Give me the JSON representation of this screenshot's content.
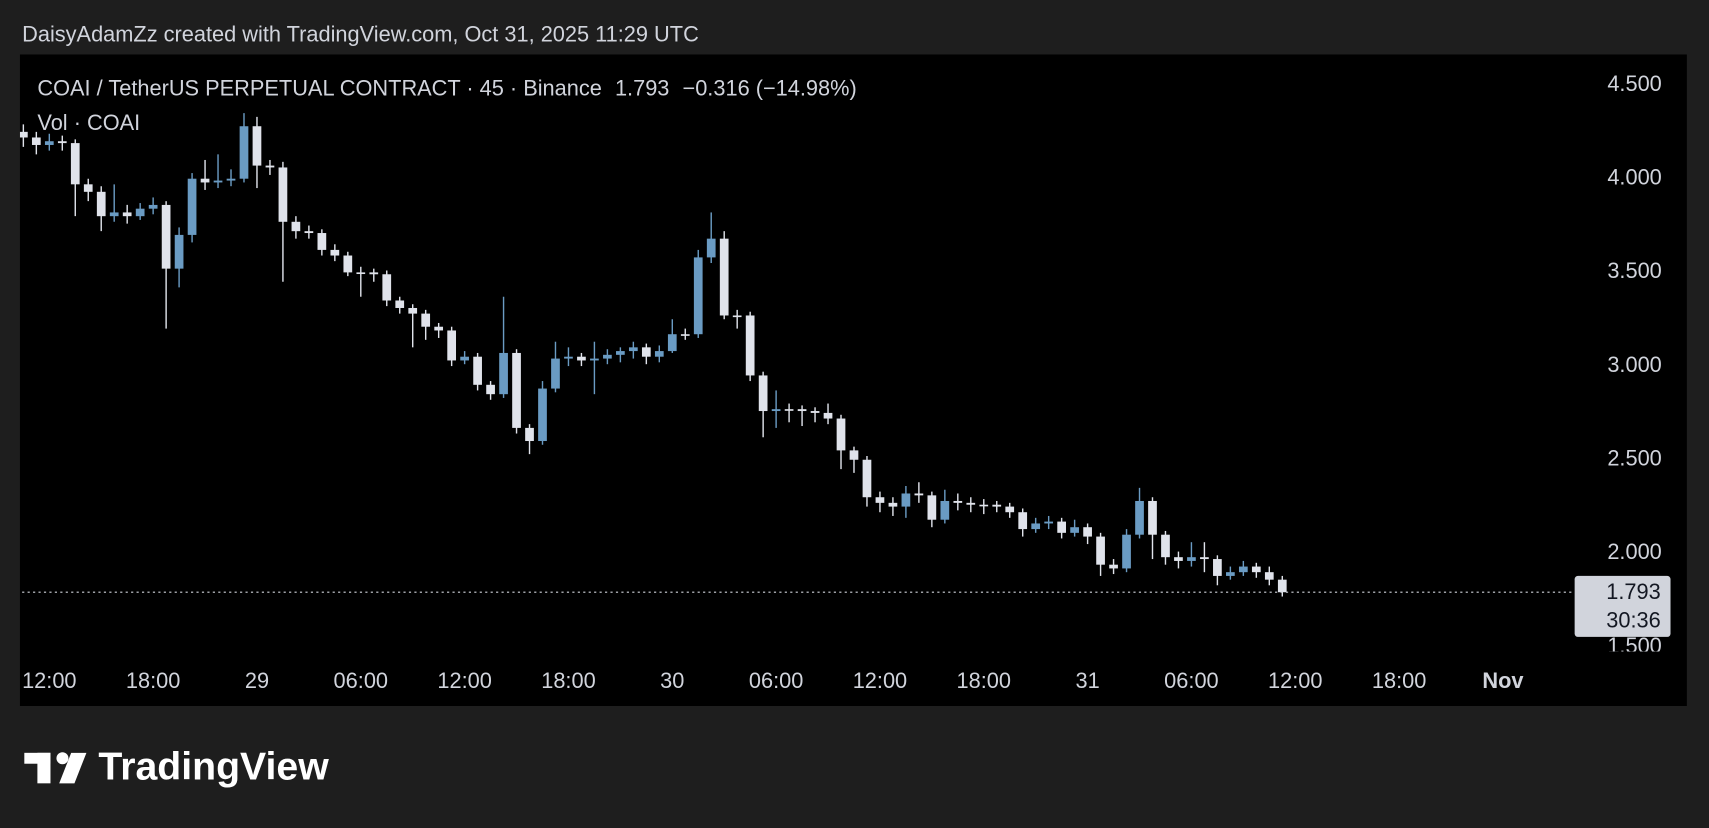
{
  "attribution": "DaisyAdamZz created with TradingView.com, Oct 31, 2025 11:29 UTC",
  "brand": "TradingView",
  "chart_data": {
    "type": "candlestick",
    "title": "COAI / TetherUS PERPETUAL CONTRACT · 45 · Binance",
    "change": "−0.316 (−14.98%)",
    "subtitle": "Vol · COAI",
    "countdown": "30:36",
    "up_color": "#6a9bc3",
    "down_color": "#e0e3eb",
    "last_price_line": true,
    "x": [
      10.5,
      11.25,
      12,
      12.75,
      13.5,
      14.25,
      15,
      15.75,
      16.5,
      17.25,
      18,
      18.75,
      19.5,
      20.25,
      21,
      21.75,
      22.5,
      23.25,
      24,
      24.75,
      25.5,
      26.25,
      27,
      27.75,
      28.5,
      29.25,
      30,
      30.75,
      31.5,
      32.25,
      33,
      33.75,
      34.5,
      35.25,
      36,
      36.75,
      37.5,
      38.25,
      39,
      39.75,
      40.5,
      41.25,
      42,
      42.75,
      43.5,
      44.25,
      45,
      45.75,
      46.5,
      47.25,
      48,
      48.75,
      49.5,
      50.25,
      51,
      51.75,
      52.5,
      53.25,
      54,
      54.75,
      55.5,
      56.25,
      57,
      57.75,
      58.5,
      59.25,
      60,
      60.75,
      61.5,
      62.25,
      63,
      63.75,
      64.5,
      65.25,
      66,
      66.75,
      67.5,
      68.25,
      69,
      69.75,
      70.5,
      71.25,
      72,
      72.75,
      73.5,
      74.25,
      75,
      75.75,
      76.5,
      77.25,
      78,
      78.75,
      79.5,
      80.25,
      81,
      81.75,
      82.5,
      83.25
    ],
    "open": [
      4.25,
      4.22,
      4.18,
      4.2,
      4.19,
      3.97,
      3.93,
      3.8,
      3.82,
      3.8,
      3.84,
      3.86,
      3.52,
      3.7,
      4.0,
      3.98,
      3.99,
      4.0,
      4.28,
      4.07,
      4.06,
      3.77,
      3.72,
      3.71,
      3.62,
      3.59,
      3.5,
      3.5,
      3.49,
      3.35,
      3.31,
      3.28,
      3.21,
      3.19,
      3.03,
      3.05,
      2.9,
      2.85,
      3.07,
      2.67,
      2.6,
      2.88,
      3.04,
      3.05,
      3.03,
      3.04,
      3.06,
      3.08,
      3.1,
      3.05,
      3.08,
      3.17,
      3.17,
      3.58,
      3.68,
      3.27,
      3.27,
      2.95,
      2.76,
      2.77,
      2.77,
      2.76,
      2.75,
      2.72,
      2.55,
      2.5,
      2.3,
      2.27,
      2.25,
      2.32,
      2.31,
      2.18,
      2.28,
      2.27,
      2.26,
      2.26,
      2.25,
      2.22,
      2.13,
      2.16,
      2.17,
      2.11,
      2.14,
      2.09,
      1.94,
      1.92,
      2.1,
      2.28,
      2.1,
      1.98,
      1.96,
      1.98,
      1.97,
      1.88,
      1.9,
      1.93,
      1.9,
      1.86
    ],
    "high": [
      4.29,
      4.25,
      4.24,
      4.23,
      4.21,
      4.0,
      3.96,
      3.97,
      3.86,
      3.87,
      3.9,
      3.88,
      3.74,
      4.03,
      4.1,
      4.13,
      4.05,
      4.35,
      4.33,
      4.1,
      4.09,
      3.8,
      3.75,
      3.73,
      3.65,
      3.61,
      3.53,
      3.52,
      3.51,
      3.37,
      3.33,
      3.3,
      3.23,
      3.21,
      3.08,
      3.07,
      2.92,
      3.37,
      3.09,
      2.69,
      2.92,
      3.13,
      3.1,
      3.07,
      3.13,
      3.09,
      3.1,
      3.13,
      3.12,
      3.11,
      3.25,
      3.2,
      3.62,
      3.82,
      3.72,
      3.3,
      3.29,
      2.97,
      2.87,
      2.8,
      2.79,
      2.78,
      2.8,
      2.74,
      2.57,
      2.52,
      2.33,
      2.3,
      2.36,
      2.38,
      2.33,
      2.34,
      2.32,
      2.3,
      2.29,
      2.28,
      2.27,
      2.24,
      2.19,
      2.2,
      2.19,
      2.18,
      2.16,
      2.11,
      1.97,
      2.13,
      2.35,
      2.3,
      2.12,
      2.01,
      2.06,
      2.06,
      1.99,
      1.93,
      1.96,
      1.95,
      1.93,
      1.88
    ],
    "low": [
      4.17,
      4.13,
      4.15,
      4.15,
      3.8,
      3.88,
      3.72,
      3.77,
      3.76,
      3.78,
      3.81,
      3.2,
      3.42,
      3.66,
      3.94,
      3.95,
      3.96,
      3.98,
      3.95,
      4.02,
      3.45,
      3.68,
      3.68,
      3.59,
      3.56,
      3.48,
      3.37,
      3.45,
      3.32,
      3.28,
      3.1,
      3.14,
      3.15,
      3.0,
      3.01,
      2.87,
      2.82,
      2.83,
      2.64,
      2.53,
      2.58,
      2.86,
      3.0,
      3.0,
      2.85,
      3.01,
      3.02,
      3.04,
      3.01,
      3.02,
      3.07,
      3.14,
      3.15,
      3.55,
      3.25,
      3.2,
      2.92,
      2.62,
      2.67,
      2.7,
      2.68,
      2.7,
      2.69,
      2.45,
      2.43,
      2.25,
      2.22,
      2.2,
      2.19,
      2.27,
      2.14,
      2.16,
      2.23,
      2.22,
      2.21,
      2.22,
      2.19,
      2.09,
      2.11,
      2.13,
      2.08,
      2.09,
      2.05,
      1.88,
      1.89,
      1.9,
      2.08,
      1.97,
      1.94,
      1.92,
      1.93,
      1.9,
      1.83,
      1.86,
      1.88,
      1.87,
      1.83,
      1.77
    ],
    "close": [
      4.22,
      4.18,
      4.2,
      4.19,
      3.97,
      3.93,
      3.8,
      3.82,
      3.8,
      3.84,
      3.86,
      3.52,
      3.7,
      4.0,
      3.98,
      3.99,
      4.0,
      4.28,
      4.07,
      4.06,
      3.77,
      3.72,
      3.71,
      3.62,
      3.59,
      3.5,
      3.5,
      3.49,
      3.35,
      3.31,
      3.28,
      3.21,
      3.19,
      3.03,
      3.05,
      2.9,
      2.85,
      3.07,
      2.67,
      2.6,
      2.88,
      3.04,
      3.05,
      3.03,
      3.04,
      3.06,
      3.08,
      3.1,
      3.05,
      3.08,
      3.17,
      3.17,
      3.58,
      3.68,
      3.27,
      3.27,
      2.95,
      2.76,
      2.77,
      2.77,
      2.76,
      2.75,
      2.72,
      2.55,
      2.5,
      2.3,
      2.27,
      2.25,
      2.32,
      2.31,
      2.18,
      2.28,
      2.27,
      2.26,
      2.26,
      2.25,
      2.22,
      2.13,
      2.16,
      2.17,
      2.11,
      2.14,
      2.09,
      1.94,
      1.92,
      2.1,
      2.28,
      2.1,
      1.98,
      1.96,
      1.98,
      1.97,
      1.88,
      1.9,
      1.93,
      1.9,
      1.86,
      1.793
    ],
    "ylim": [
      1.465,
      4.663
    ],
    "yticks": [
      {
        "value": 1.5,
        "label": "1.500"
      },
      {
        "value": 2,
        "label": "2.000"
      },
      {
        "value": 2.5,
        "label": "2.500"
      },
      {
        "value": 3,
        "label": "3.000"
      },
      {
        "value": 3.5,
        "label": "3.500"
      },
      {
        "value": 4,
        "label": "4.000"
      },
      {
        "value": 4.5,
        "label": "4.500"
      }
    ],
    "xlim": [
      10.43,
      99.83
    ],
    "xticks": [
      {
        "value": 12,
        "label": "12:00"
      },
      {
        "value": 18,
        "label": "18:00"
      },
      {
        "value": 24,
        "label": "29"
      },
      {
        "value": 30,
        "label": "06:00"
      },
      {
        "value": 36,
        "label": "12:00"
      },
      {
        "value": 42,
        "label": "18:00"
      },
      {
        "value": 48,
        "label": "30"
      },
      {
        "value": 54,
        "label": "06:00"
      },
      {
        "value": 60,
        "label": "12:00"
      },
      {
        "value": 66,
        "label": "18:00"
      },
      {
        "value": 72,
        "label": "31"
      },
      {
        "value": 78,
        "label": "06:00"
      },
      {
        "value": 84,
        "label": "12:00"
      },
      {
        "value": 90,
        "label": "18:00"
      },
      {
        "value": 96,
        "label": "Nov"
      }
    ]
  }
}
